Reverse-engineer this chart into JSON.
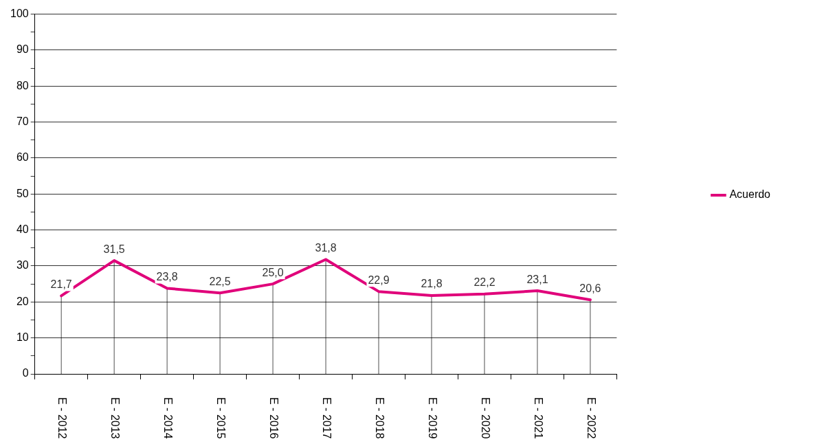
{
  "chart_data": {
    "type": "line",
    "categories": [
      "E - 2012",
      "E - 2013",
      "E - 2014",
      "E - 2015",
      "E - 2016",
      "E - 2017",
      "E - 2018",
      "E - 2019",
      "E - 2020",
      "E - 2021",
      "E - 2022"
    ],
    "series": [
      {
        "name": "Acuerdo",
        "color": "#e0007a",
        "values": [
          21.7,
          31.5,
          23.8,
          22.5,
          25.0,
          31.8,
          22.9,
          21.8,
          22.2,
          23.1,
          20.6
        ],
        "value_labels": [
          "21,7",
          "31,5",
          "23,8",
          "22,5",
          "25,0",
          "31,8",
          "22,9",
          "21,8",
          "22,2",
          "23,1",
          "20,6"
        ]
      }
    ],
    "ylim": [
      0,
      100
    ],
    "yticks": [
      0,
      {
        "value": 5,
        "label": null
      },
      10,
      {
        "value": 15,
        "label": null
      },
      20,
      {
        "value": 25,
        "label": null
      },
      30,
      {
        "value": 35,
        "label": null
      },
      40,
      {
        "value": 45,
        "label": null
      },
      50,
      {
        "value": 55,
        "label": null
      },
      60,
      {
        "value": 65,
        "label": null
      },
      70,
      {
        "value": 75,
        "label": null
      },
      80,
      {
        "value": 85,
        "label": null
      },
      90,
      {
        "value": 95,
        "label": null
      },
      100
    ],
    "grid": "y",
    "legend": "right",
    "marker": "none",
    "line_style": "solid"
  }
}
